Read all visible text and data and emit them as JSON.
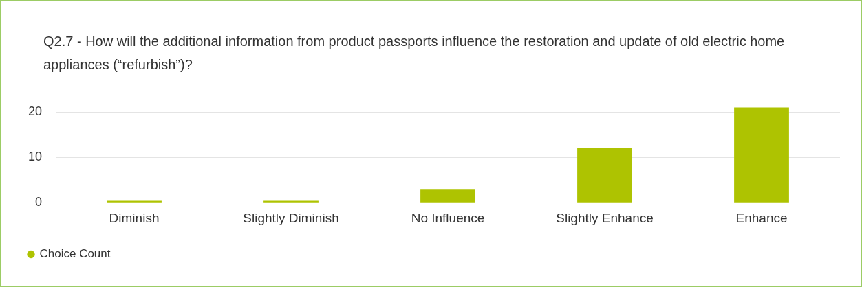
{
  "chart_data": {
    "type": "bar",
    "title": "Q2.7 - How will the additional information from product passports influence the restoration and update of old electric home appliances (“refurbish”)?",
    "categories": [
      "Diminish",
      "Slightly Diminish",
      "No Influence",
      "Slightly Enhance",
      "Enhance"
    ],
    "series": [
      {
        "name": "Choice Count",
        "color": "#aec301",
        "values": [
          0.4,
          0.4,
          3,
          12,
          21
        ]
      }
    ],
    "ylim": [
      0,
      22
    ],
    "yticks": [
      0,
      10,
      20
    ],
    "grid": "y",
    "legend": "bottom left"
  }
}
